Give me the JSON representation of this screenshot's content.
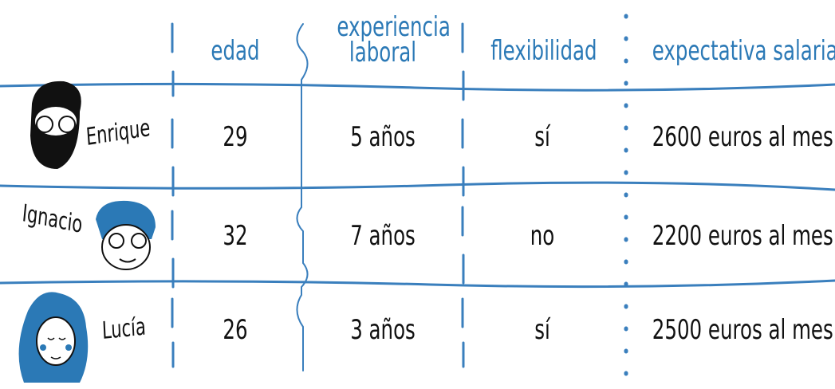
{
  "table": {
    "header": [
      "edad",
      "experiencia laboral",
      "flexibilidad",
      "expectativa salarial"
    ],
    "rows": [
      [
        "Enrique",
        "29",
        "5 años",
        "sí",
        "2600 euros al mes"
      ],
      [
        "Ignacio",
        "32",
        "7 años",
        "no",
        "2200 euros al mes"
      ],
      [
        "Lucía",
        "26",
        "3 años",
        "sí",
        "2500 euros al mes"
      ]
    ]
  }
}
